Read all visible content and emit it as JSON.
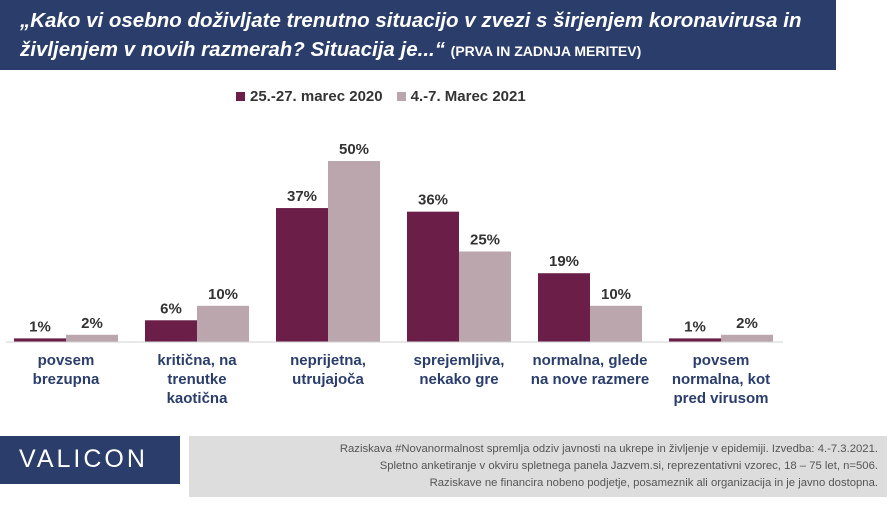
{
  "title": {
    "main": "„Kako vi osebno doživljate trenutno situacijo v zvezi s širjenjem koronavirusa in življenjem v novih razmerah? Situacija je...“",
    "suffix": "(PRVA IN ZADNJA MERITEV)"
  },
  "colors": {
    "series1": "#6b1f48",
    "series2": "#bca6ae",
    "banner": "#2b3e6b",
    "footer_bg": "#dddddd"
  },
  "chart_data": {
    "type": "bar",
    "categories": [
      [
        "povsem",
        "brezupna"
      ],
      [
        "kritična, na",
        "trenutke",
        "kaotična"
      ],
      [
        "neprijetna,",
        "utrujajoča"
      ],
      [
        "sprejemljiva,",
        "nekako gre"
      ],
      [
        "normalna, glede",
        "na nove razmere"
      ],
      [
        "povsem",
        "normalna, kot",
        "pred virusom"
      ]
    ],
    "series": [
      {
        "name": "25.-27. marec 2020",
        "values": [
          1,
          6,
          37,
          36,
          19,
          1
        ],
        "labels": [
          "1%",
          "6%",
          "37%",
          "36%",
          "19%",
          "1%"
        ]
      },
      {
        "name": "4.-7. Marec 2021",
        "values": [
          2,
          10,
          50,
          25,
          10,
          2
        ],
        "labels": [
          "2%",
          "10%",
          "50%",
          "25%",
          "10%",
          "2%"
        ]
      }
    ],
    "ylim": [
      0,
      50
    ],
    "legend": "top"
  },
  "footer": {
    "logo": "VALICON",
    "lines": [
      "Raziskava #Novanormalnost spremlja odziv javnosti na ukrepe in življenje v epidemiji. Izvedba: 4.-7.3.2021.",
      "Spletno anketiranje v okviru spletnega panela Jazvem.si, reprezentativni vzorec, 18 – 75 let, n=506.",
      "Raziskave ne financira nobeno podjetje, posameznik ali organizacija in je javno dostopna."
    ]
  }
}
